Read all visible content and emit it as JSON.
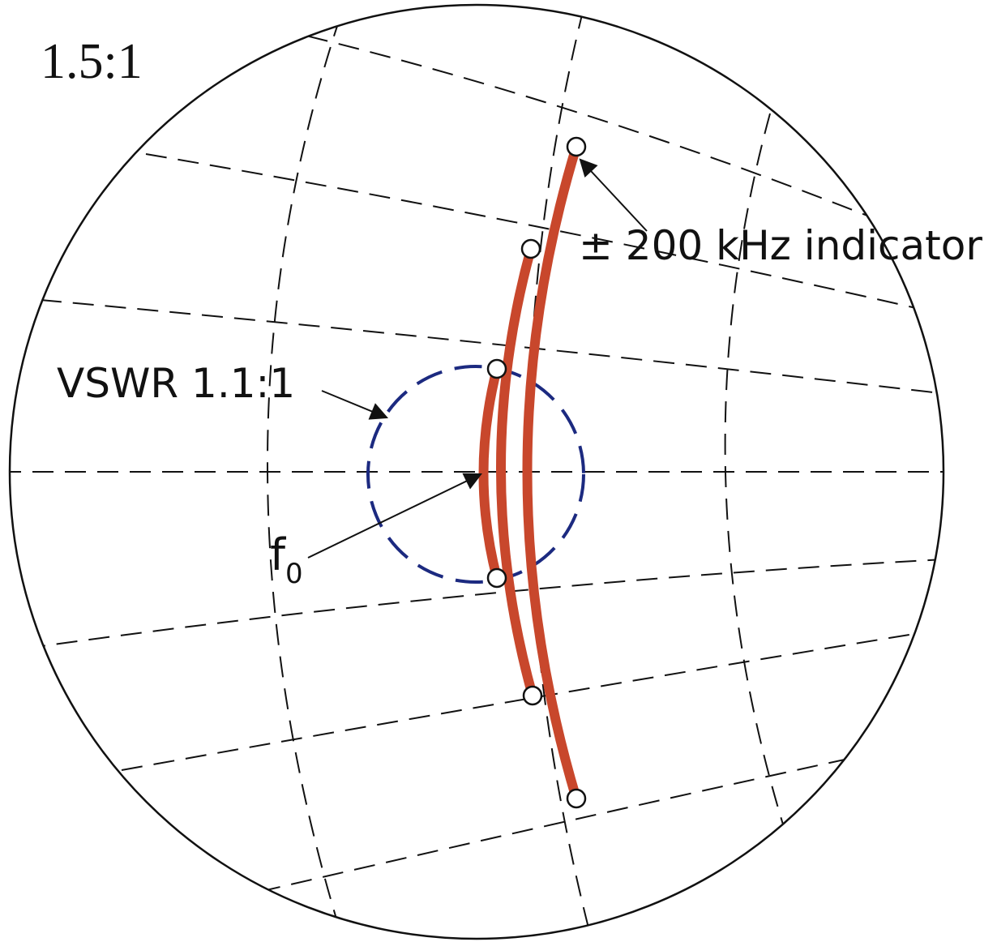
{
  "ratio_label": "1.5:1",
  "indicator_label": "± 200 kHz indicator",
  "vswr_label": "VSWR 1.1:1",
  "f0_label": "f",
  "f0_subscript": "0",
  "colors": {
    "trace": "#c8472c",
    "vswr_circle": "#1c2a80",
    "lines": "#111111"
  }
}
